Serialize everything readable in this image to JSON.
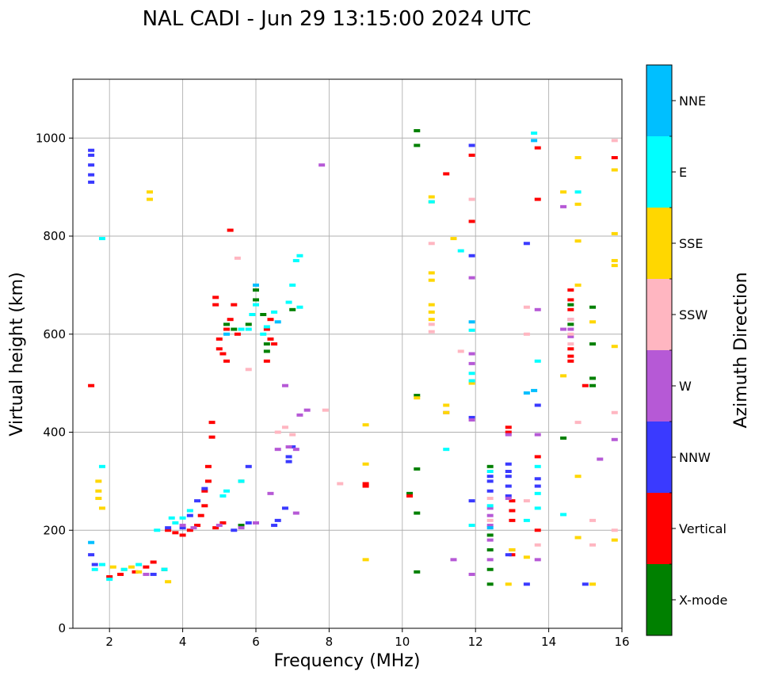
{
  "chart_data": {
    "type": "scatter",
    "title": "NAL CADI - Jun 29 13:15:00 2024 UTC",
    "xlabel": "Frequency (MHz)",
    "ylabel": "Virtual height (km)",
    "xlim": [
      1,
      16
    ],
    "ylim": [
      0,
      1120
    ],
    "xticks": [
      2,
      4,
      6,
      8,
      10,
      12,
      14,
      16
    ],
    "yticks": [
      0,
      200,
      400,
      600,
      800,
      1000
    ],
    "grid": true,
    "colorbar": {
      "label": "Azimuth Direction",
      "categories": [
        {
          "name": "X-mode",
          "color": "#008000"
        },
        {
          "name": "Vertical",
          "color": "#ff0000"
        },
        {
          "name": "NNW",
          "color": "#3a3aff"
        },
        {
          "name": "W",
          "color": "#b659d6"
        },
        {
          "name": "SSW",
          "color": "#ffb6c1"
        },
        {
          "name": "SSE",
          "color": "#ffd700"
        },
        {
          "name": "E",
          "color": "#00ffff"
        },
        {
          "name": "NNE",
          "color": "#00bfff"
        }
      ]
    },
    "series": [
      {
        "name": "X-mode",
        "points": [
          [
            3.5,
            120
          ],
          [
            5.6,
            210
          ],
          [
            5.8,
            620
          ],
          [
            6.0,
            690
          ],
          [
            6.3,
            580
          ],
          [
            6.3,
            565
          ],
          [
            10.4,
            1015
          ],
          [
            10.4,
            985
          ],
          [
            10.2,
            275
          ],
          [
            10.4,
            325
          ],
          [
            10.4,
            235
          ],
          [
            10.4,
            115
          ],
          [
            12.4,
            330
          ],
          [
            12.4,
            190
          ],
          [
            12.4,
            160
          ],
          [
            12.4,
            120
          ],
          [
            12.4,
            90
          ],
          [
            14.4,
            388
          ],
          [
            14.6,
            620
          ],
          [
            14.6,
            660
          ],
          [
            15.2,
            655
          ],
          [
            15.2,
            580
          ],
          [
            15.2,
            510
          ],
          [
            15.2,
            495
          ],
          [
            10.4,
            475
          ],
          [
            7.0,
            650
          ],
          [
            5.6,
            300
          ],
          [
            6.0,
            670
          ],
          [
            6.2,
            640
          ],
          [
            5.2,
            620
          ],
          [
            5.4,
            610
          ]
        ]
      },
      {
        "name": "Vertical",
        "points": [
          [
            2.0,
            105
          ],
          [
            2.3,
            110
          ],
          [
            2.7,
            115
          ],
          [
            3.0,
            125
          ],
          [
            3.2,
            135
          ],
          [
            3.6,
            200
          ],
          [
            3.8,
            195
          ],
          [
            4.0,
            190
          ],
          [
            4.2,
            200
          ],
          [
            4.4,
            210
          ],
          [
            4.5,
            230
          ],
          [
            4.6,
            250
          ],
          [
            4.6,
            280
          ],
          [
            4.7,
            300
          ],
          [
            4.7,
            330
          ],
          [
            4.8,
            390
          ],
          [
            4.8,
            420
          ],
          [
            4.9,
            205
          ],
          [
            5.1,
            215
          ],
          [
            5.0,
            590
          ],
          [
            5.0,
            570
          ],
          [
            5.1,
            560
          ],
          [
            5.2,
            610
          ],
          [
            5.3,
            630
          ],
          [
            5.2,
            545
          ],
          [
            4.9,
            675
          ],
          [
            4.9,
            660
          ],
          [
            5.3,
            812
          ],
          [
            5.4,
            660
          ],
          [
            6.3,
            610
          ],
          [
            6.4,
            590
          ],
          [
            6.5,
            580
          ],
          [
            6.3,
            545
          ],
          [
            6.4,
            630
          ],
          [
            5.5,
            600
          ],
          [
            1.5,
            495
          ],
          [
            9.0,
            295
          ],
          [
            9.0,
            290
          ],
          [
            10.2,
            270
          ],
          [
            11.2,
            927
          ],
          [
            11.9,
            965
          ],
          [
            11.9,
            830
          ],
          [
            12.9,
            410
          ],
          [
            12.9,
            400
          ],
          [
            13.0,
            260
          ],
          [
            13.0,
            240
          ],
          [
            13.0,
            220
          ],
          [
            13.0,
            160
          ],
          [
            13.0,
            150
          ],
          [
            13.7,
            980
          ],
          [
            13.7,
            875
          ],
          [
            13.7,
            350
          ],
          [
            13.7,
            200
          ],
          [
            14.6,
            690
          ],
          [
            14.6,
            670
          ],
          [
            14.6,
            650
          ],
          [
            14.6,
            570
          ],
          [
            14.6,
            555
          ],
          [
            14.6,
            545
          ],
          [
            15.8,
            960
          ],
          [
            15.0,
            495
          ]
        ]
      },
      {
        "name": "NNW",
        "points": [
          [
            1.5,
            975
          ],
          [
            1.5,
            965
          ],
          [
            1.5,
            945
          ],
          [
            1.5,
            925
          ],
          [
            1.5,
            910
          ],
          [
            1.5,
            150
          ],
          [
            1.6,
            130
          ],
          [
            3.2,
            110
          ],
          [
            3.6,
            205
          ],
          [
            4.0,
            205
          ],
          [
            4.2,
            230
          ],
          [
            4.4,
            260
          ],
          [
            4.6,
            285
          ],
          [
            5.4,
            200
          ],
          [
            5.8,
            215
          ],
          [
            6.5,
            210
          ],
          [
            6.6,
            220
          ],
          [
            6.8,
            245
          ],
          [
            6.9,
            340
          ],
          [
            6.9,
            350
          ],
          [
            7.0,
            370
          ],
          [
            11.9,
            985
          ],
          [
            11.9,
            760
          ],
          [
            11.9,
            430
          ],
          [
            11.9,
            260
          ],
          [
            12.4,
            310
          ],
          [
            12.4,
            300
          ],
          [
            12.4,
            280
          ],
          [
            12.9,
            335
          ],
          [
            12.9,
            320
          ],
          [
            12.9,
            310
          ],
          [
            12.9,
            290
          ],
          [
            12.9,
            270
          ],
          [
            12.9,
            150
          ],
          [
            13.4,
            785
          ],
          [
            13.7,
            455
          ],
          [
            13.7,
            305
          ],
          [
            13.7,
            290
          ],
          [
            13.4,
            90
          ],
          [
            15.0,
            90
          ],
          [
            5.8,
            330
          ]
        ]
      },
      {
        "name": "W",
        "points": [
          [
            3.0,
            110
          ],
          [
            4.0,
            210
          ],
          [
            4.3,
            205
          ],
          [
            5.0,
            210
          ],
          [
            5.6,
            205
          ],
          [
            6.0,
            215
          ],
          [
            6.4,
            275
          ],
          [
            6.6,
            365
          ],
          [
            6.8,
            495
          ],
          [
            6.9,
            370
          ],
          [
            7.1,
            365
          ],
          [
            7.1,
            235
          ],
          [
            7.2,
            435
          ],
          [
            7.4,
            445
          ],
          [
            7.8,
            945
          ],
          [
            11.2,
            440
          ],
          [
            11.4,
            140
          ],
          [
            11.9,
            715
          ],
          [
            11.9,
            560
          ],
          [
            11.9,
            540
          ],
          [
            11.9,
            425
          ],
          [
            11.9,
            110
          ],
          [
            12.4,
            245
          ],
          [
            12.4,
            230
          ],
          [
            12.4,
            210
          ],
          [
            12.4,
            180
          ],
          [
            12.4,
            140
          ],
          [
            12.9,
            265
          ],
          [
            12.9,
            395
          ],
          [
            13.7,
            650
          ],
          [
            13.7,
            395
          ],
          [
            13.7,
            140
          ],
          [
            14.4,
            860
          ],
          [
            14.4,
            610
          ],
          [
            14.6,
            630
          ],
          [
            14.6,
            610
          ],
          [
            14.6,
            595
          ],
          [
            15.8,
            385
          ],
          [
            15.4,
            345
          ]
        ]
      },
      {
        "name": "SSW",
        "points": [
          [
            5.5,
            755
          ],
          [
            5.8,
            528
          ],
          [
            6.6,
            400
          ],
          [
            6.8,
            410
          ],
          [
            7.0,
            395
          ],
          [
            7.9,
            445
          ],
          [
            8.3,
            295
          ],
          [
            10.8,
            785
          ],
          [
            10.8,
            620
          ],
          [
            10.8,
            605
          ],
          [
            11.6,
            565
          ],
          [
            11.9,
            875
          ],
          [
            12.4,
            265
          ],
          [
            12.4,
            220
          ],
          [
            13.4,
            655
          ],
          [
            13.4,
            600
          ],
          [
            13.4,
            260
          ],
          [
            13.7,
            170
          ],
          [
            14.6,
            630
          ],
          [
            14.6,
            600
          ],
          [
            14.6,
            580
          ],
          [
            15.2,
            220
          ],
          [
            15.2,
            170
          ],
          [
            15.8,
            995
          ],
          [
            15.8,
            440
          ],
          [
            15.8,
            200
          ],
          [
            14.8,
            420
          ]
        ]
      },
      {
        "name": "SSE",
        "points": [
          [
            1.7,
            300
          ],
          [
            1.7,
            280
          ],
          [
            1.7,
            265
          ],
          [
            1.8,
            245
          ],
          [
            2.1,
            125
          ],
          [
            2.4,
            120
          ],
          [
            2.6,
            125
          ],
          [
            2.8,
            115
          ],
          [
            3.1,
            890
          ],
          [
            3.1,
            875
          ],
          [
            3.6,
            95
          ],
          [
            9.0,
            415
          ],
          [
            9.0,
            335
          ],
          [
            9.0,
            140
          ],
          [
            10.4,
            470
          ],
          [
            10.8,
            880
          ],
          [
            10.8,
            870
          ],
          [
            10.8,
            725
          ],
          [
            10.8,
            710
          ],
          [
            10.8,
            660
          ],
          [
            10.8,
            645
          ],
          [
            10.8,
            630
          ],
          [
            11.2,
            455
          ],
          [
            11.2,
            440
          ],
          [
            11.4,
            795
          ],
          [
            11.9,
            500
          ],
          [
            12.9,
            90
          ],
          [
            13.0,
            160
          ],
          [
            13.4,
            145
          ],
          [
            14.4,
            890
          ],
          [
            14.4,
            515
          ],
          [
            14.8,
            960
          ],
          [
            14.8,
            865
          ],
          [
            14.8,
            790
          ],
          [
            14.8,
            700
          ],
          [
            14.8,
            310
          ],
          [
            14.8,
            185
          ],
          [
            15.2,
            90
          ],
          [
            15.2,
            625
          ],
          [
            15.8,
            935
          ],
          [
            15.8,
            805
          ],
          [
            15.8,
            750
          ],
          [
            15.8,
            740
          ],
          [
            15.8,
            575
          ],
          [
            15.8,
            180
          ]
        ]
      },
      {
        "name": "E",
        "points": [
          [
            1.6,
            120
          ],
          [
            1.8,
            130
          ],
          [
            2.0,
            100
          ],
          [
            2.4,
            120
          ],
          [
            2.8,
            130
          ],
          [
            3.3,
            200
          ],
          [
            3.5,
            120
          ],
          [
            3.7,
            225
          ],
          [
            3.8,
            215
          ],
          [
            4.0,
            225
          ],
          [
            4.2,
            240
          ],
          [
            5.1,
            270
          ],
          [
            5.2,
            280
          ],
          [
            5.6,
            300
          ],
          [
            5.6,
            610
          ],
          [
            5.8,
            610
          ],
          [
            5.9,
            640
          ],
          [
            6.0,
            660
          ],
          [
            6.2,
            600
          ],
          [
            6.3,
            615
          ],
          [
            6.5,
            645
          ],
          [
            6.9,
            665
          ],
          [
            7.0,
            700
          ],
          [
            7.2,
            760
          ],
          [
            7.1,
            750
          ],
          [
            7.2,
            655
          ],
          [
            10.8,
            870
          ],
          [
            11.2,
            365
          ],
          [
            11.6,
            770
          ],
          [
            11.9,
            608
          ],
          [
            11.9,
            520
          ],
          [
            11.9,
            505
          ],
          [
            11.9,
            210
          ],
          [
            12.4,
            320
          ],
          [
            12.4,
            250
          ],
          [
            13.4,
            220
          ],
          [
            13.6,
            1010
          ],
          [
            13.7,
            545
          ],
          [
            13.7,
            330
          ],
          [
            13.7,
            275
          ],
          [
            13.7,
            245
          ],
          [
            14.4,
            232
          ],
          [
            14.8,
            890
          ],
          [
            1.8,
            330
          ],
          [
            1.8,
            795
          ]
        ]
      },
      {
        "name": "NNE",
        "points": [
          [
            1.5,
            175
          ],
          [
            13.6,
            995
          ],
          [
            11.9,
            625
          ],
          [
            13.6,
            485
          ],
          [
            13.4,
            480
          ],
          [
            12.4,
            205
          ],
          [
            6.0,
            700
          ],
          [
            5.2,
            600
          ],
          [
            6.6,
            625
          ]
        ]
      }
    ]
  }
}
